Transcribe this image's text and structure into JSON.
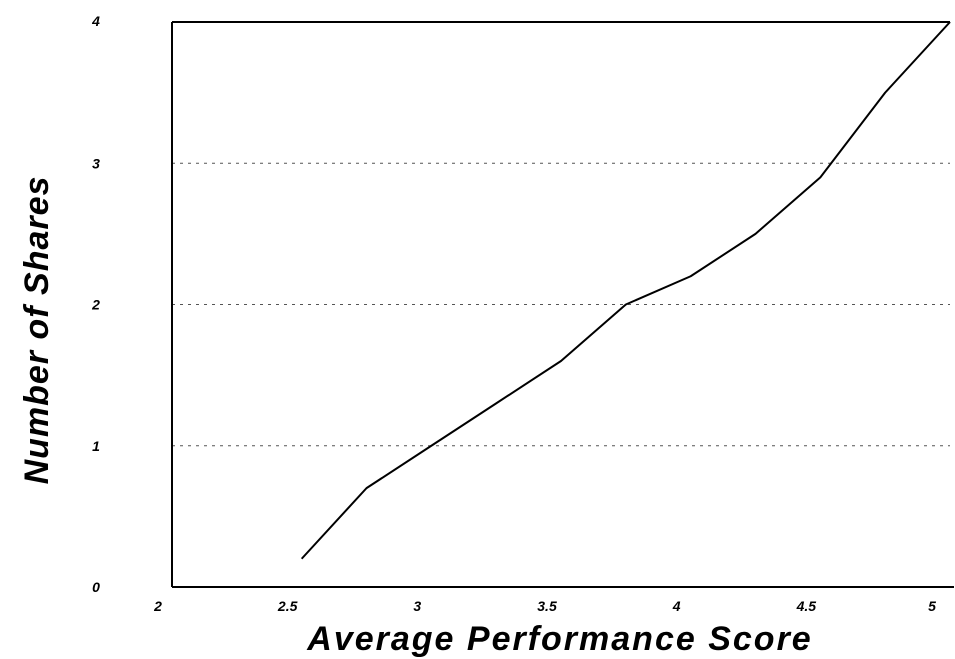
{
  "chart_data": {
    "type": "line",
    "xlabel": "Average Performance Score",
    "ylabel": "Number of Shares",
    "xlim": [
      2,
      5
    ],
    "ylim": [
      0,
      4
    ],
    "x_ticks": [
      "2",
      "2.5",
      "3",
      "3.5",
      "4",
      "4.5",
      "5"
    ],
    "y_ticks": [
      "0",
      "1",
      "2",
      "3",
      "4"
    ],
    "grid": "horizontal dotted at 1, 2, 3",
    "legend": "none",
    "series": [
      {
        "x": [
          2.5,
          2.75,
          3.0,
          3.25,
          3.5,
          3.75,
          4.0,
          4.25,
          4.5,
          4.75,
          5.0
        ],
        "y": [
          0.2,
          0.7,
          1.0,
          1.3,
          1.6,
          2.0,
          2.2,
          2.5,
          2.9,
          3.5,
          4.0
        ]
      }
    ],
    "colors": {
      "line": "#000000",
      "grid": "#555555",
      "axis": "#000000"
    }
  }
}
